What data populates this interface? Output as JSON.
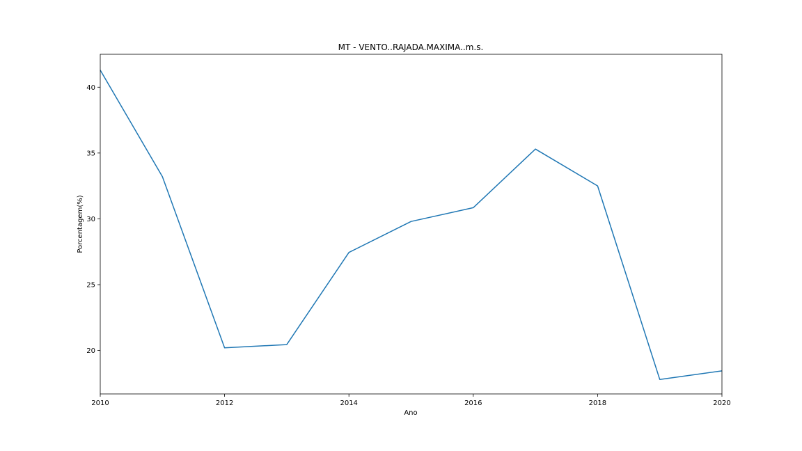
{
  "chart_data": {
    "type": "line",
    "title": "MT - VENTO..RAJADA.MAXIMA..m.s.",
    "xlabel": "Ano",
    "ylabel": "Porcentagem(%)",
    "x": [
      2010,
      2011,
      2012,
      2013,
      2014,
      2015,
      2016,
      2017,
      2018,
      2019,
      2020
    ],
    "series": [
      {
        "values": [
          41.3,
          33.2,
          20.2,
          20.45,
          27.45,
          29.8,
          30.85,
          35.3,
          32.5,
          17.8,
          18.45
        ],
        "color": "#1f77b4"
      }
    ],
    "xlim": [
      2010,
      2020
    ],
    "ylim": [
      16.7,
      42.5
    ],
    "xticks": [
      2010,
      2012,
      2014,
      2016,
      2018,
      2020
    ],
    "yticks": [
      20,
      25,
      30,
      35,
      40
    ],
    "grid": false
  }
}
